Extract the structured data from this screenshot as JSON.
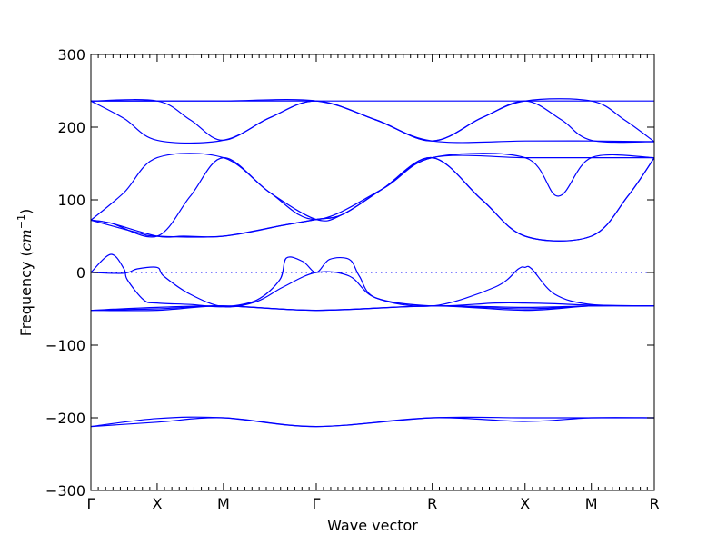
{
  "chart_data": {
    "type": "line",
    "title": "",
    "xlabel": "Wave vector",
    "ylabel_prefix": "Frequency (",
    "ylabel_unit": "cm",
    "ylabel_exp": "−1",
    "ylabel_suffix": ")",
    "ylim": [
      -300,
      300
    ],
    "yticks": [
      300,
      200,
      100,
      0,
      -100,
      -200,
      -300
    ],
    "ytick_labels": [
      "300",
      "200",
      "100",
      "0",
      "−100",
      "−200",
      "−300"
    ],
    "xlim": [
      0,
      8.5
    ],
    "high_symmetry_points": [
      {
        "label": "Γ",
        "x": 0
      },
      {
        "label": "X",
        "x": 1
      },
      {
        "label": "M",
        "x": 2
      },
      {
        "label": "Γ",
        "x": 3.4
      },
      {
        "label": "R",
        "x": 5.15
      },
      {
        "label": "X",
        "x": 6.55
      },
      {
        "label": "M",
        "x": 7.55
      },
      {
        "label": "R",
        "x": 8.5
      }
    ],
    "reference_line_y": 0,
    "grid": false,
    "series": [
      {
        "values": [
          [
            0,
            236
          ],
          [
            1,
            236
          ],
          [
            2,
            236
          ],
          [
            3.4,
            236
          ],
          [
            5.15,
            236
          ],
          [
            6.55,
            236
          ],
          [
            7.55,
            236
          ],
          [
            8.5,
            236
          ]
        ]
      },
      {
        "values": [
          [
            0,
            236
          ],
          [
            0.5,
            212
          ],
          [
            1,
            182
          ],
          [
            2,
            182
          ],
          [
            2.7,
            213
          ],
          [
            3.4,
            236
          ],
          [
            4.3,
            210
          ],
          [
            5.15,
            181
          ],
          [
            5.9,
            213
          ],
          [
            6.55,
            236
          ],
          [
            7.1,
            210
          ],
          [
            7.55,
            182
          ],
          [
            8.5,
            180
          ]
        ]
      },
      {
        "values": [
          [
            0,
            236
          ],
          [
            1,
            236
          ],
          [
            1.5,
            210
          ],
          [
            2,
            182
          ],
          [
            2.7,
            213
          ],
          [
            3.4,
            236
          ],
          [
            4.3,
            210
          ],
          [
            5.15,
            181
          ],
          [
            6.55,
            181
          ],
          [
            7.55,
            181
          ],
          [
            8.5,
            180
          ]
        ]
      },
      {
        "values": [
          [
            0,
            236
          ],
          [
            1,
            236
          ],
          [
            2,
            236
          ],
          [
            3.4,
            236
          ],
          [
            4.3,
            210
          ],
          [
            5.15,
            181
          ],
          [
            5.9,
            213
          ],
          [
            6.55,
            236
          ],
          [
            7.55,
            236
          ],
          [
            8.05,
            210
          ],
          [
            8.5,
            180
          ]
        ]
      },
      {
        "values": [
          [
            0,
            72
          ],
          [
            0.5,
            110
          ],
          [
            1,
            158
          ],
          [
            2,
            158
          ],
          [
            2.7,
            110
          ],
          [
            3.4,
            73
          ],
          [
            3.8,
            80
          ],
          [
            4.4,
            115
          ],
          [
            5.15,
            158
          ],
          [
            6.55,
            158
          ],
          [
            7.55,
            158
          ],
          [
            8.5,
            158
          ]
        ]
      },
      {
        "values": [
          [
            0,
            72
          ],
          [
            0.7,
            55
          ],
          [
            1,
            50
          ],
          [
            2,
            50
          ],
          [
            2.9,
            65
          ],
          [
            3.4,
            73
          ],
          [
            3.8,
            80
          ],
          [
            4.4,
            115
          ],
          [
            5.15,
            158
          ],
          [
            5.9,
            100
          ],
          [
            6.55,
            50
          ],
          [
            7.55,
            50
          ],
          [
            8.1,
            105
          ],
          [
            8.5,
            158
          ]
        ]
      },
      {
        "values": [
          [
            0,
            72
          ],
          [
            0.3,
            68
          ],
          [
            1,
            50
          ],
          [
            1.5,
            105
          ],
          [
            2,
            158
          ],
          [
            2.7,
            110
          ],
          [
            3.4,
            73
          ],
          [
            4.4,
            115
          ],
          [
            5.15,
            158
          ],
          [
            6.55,
            158
          ],
          [
            7.05,
            105
          ],
          [
            7.55,
            158
          ],
          [
            8.5,
            158
          ]
        ]
      },
      {
        "values": [
          [
            0,
            72
          ],
          [
            0.3,
            68
          ],
          [
            1,
            50
          ],
          [
            1.4,
            50
          ],
          [
            2,
            50
          ],
          [
            2.9,
            65
          ],
          [
            3.4,
            73
          ],
          [
            3.8,
            80
          ],
          [
            4.4,
            115
          ],
          [
            5.15,
            158
          ],
          [
            5.9,
            100
          ],
          [
            6.55,
            50
          ],
          [
            7.55,
            50
          ],
          [
            8.1,
            105
          ],
          [
            8.5,
            158
          ]
        ]
      },
      {
        "values": [
          [
            0,
            0
          ],
          [
            0.3,
            25
          ],
          [
            0.5,
            5
          ],
          [
            0.55,
            -10
          ],
          [
            0.8,
            -38
          ],
          [
            1,
            -42
          ],
          [
            1.5,
            -44
          ],
          [
            2,
            -47
          ],
          [
            2.5,
            -38
          ],
          [
            2.85,
            -10
          ],
          [
            2.95,
            20
          ],
          [
            3.2,
            15
          ],
          [
            3.4,
            0
          ],
          [
            3.6,
            18
          ],
          [
            3.9,
            18
          ],
          [
            4.05,
            -5
          ],
          [
            4.3,
            -35
          ],
          [
            5.15,
            -46
          ],
          [
            6.1,
            -20
          ],
          [
            6.45,
            5
          ],
          [
            6.55,
            7
          ],
          [
            6.65,
            5
          ],
          [
            7.0,
            -30
          ],
          [
            7.55,
            -44
          ],
          [
            8.5,
            -46
          ]
        ]
      },
      {
        "values": [
          [
            0,
            0
          ],
          [
            0.5,
            -1
          ],
          [
            0.7,
            5
          ],
          [
            1,
            7
          ],
          [
            1.1,
            -5
          ],
          [
            1.5,
            -30
          ],
          [
            2,
            -47
          ],
          [
            2.5,
            -40
          ],
          [
            2.9,
            -20
          ],
          [
            3.4,
            0
          ],
          [
            3.9,
            -5
          ],
          [
            4.3,
            -35
          ],
          [
            5.15,
            -46
          ],
          [
            6.1,
            -42
          ],
          [
            6.55,
            -42
          ],
          [
            7.0,
            -43
          ],
          [
            7.55,
            -45
          ],
          [
            8.5,
            -46
          ]
        ]
      },
      {
        "values": [
          [
            0,
            -52
          ],
          [
            1,
            -50
          ],
          [
            2,
            -46
          ],
          [
            3.4,
            -52
          ],
          [
            5.15,
            -46
          ],
          [
            6.55,
            -52
          ],
          [
            7.55,
            -46
          ],
          [
            8.5,
            -46
          ]
        ]
      },
      {
        "values": [
          [
            0,
            -52
          ],
          [
            1,
            -48
          ],
          [
            2,
            -46
          ],
          [
            3.4,
            -52
          ],
          [
            5.15,
            -46
          ],
          [
            6.55,
            -48
          ],
          [
            7.55,
            -46
          ],
          [
            8.5,
            -46
          ]
        ]
      },
      {
        "values": [
          [
            0,
            -52
          ],
          [
            1,
            -52
          ],
          [
            2,
            -46
          ],
          [
            3.4,
            -52
          ],
          [
            5.15,
            -46
          ],
          [
            6.55,
            -50
          ],
          [
            7.55,
            -46
          ],
          [
            8.5,
            -46
          ]
        ]
      },
      {
        "values": [
          [
            0,
            -212
          ],
          [
            1,
            -201
          ],
          [
            2,
            -200
          ],
          [
            3.4,
            -212
          ],
          [
            5.15,
            -200
          ],
          [
            6.55,
            -200
          ],
          [
            7.55,
            -200
          ],
          [
            8.5,
            -200
          ]
        ]
      },
      {
        "values": [
          [
            0,
            -212
          ],
          [
            1,
            -206
          ],
          [
            2,
            -200
          ],
          [
            3.4,
            -212
          ],
          [
            5.15,
            -200
          ],
          [
            6.55,
            -205
          ],
          [
            7.55,
            -200
          ],
          [
            8.5,
            -200
          ]
        ]
      }
    ]
  }
}
